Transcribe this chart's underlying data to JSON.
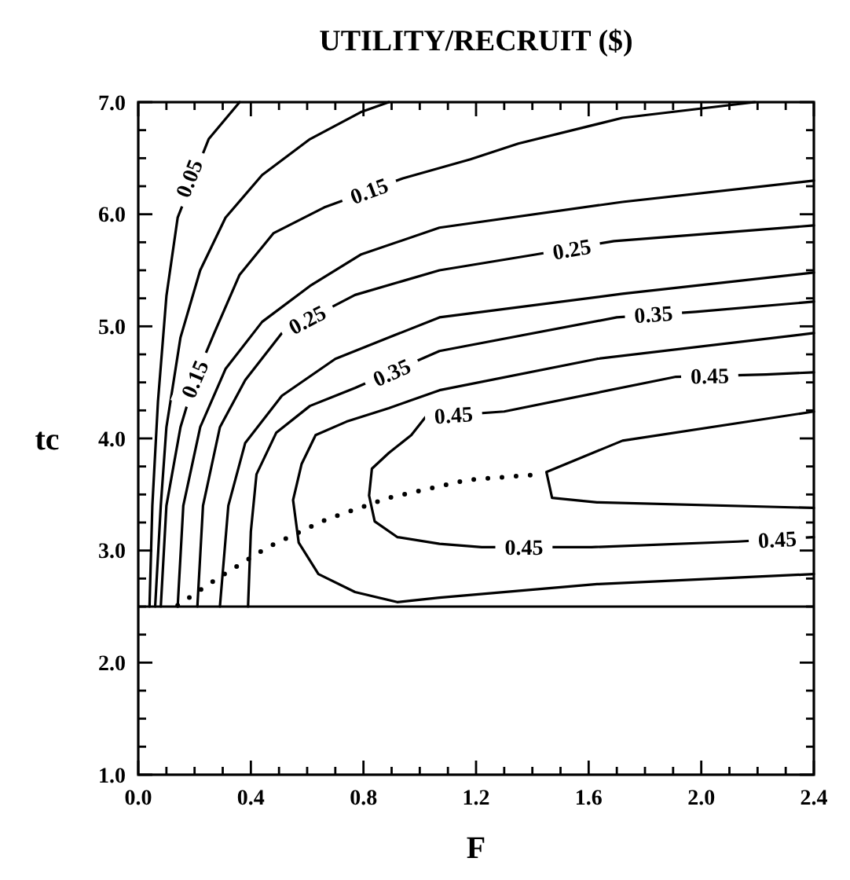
{
  "chart_data": {
    "type": "line",
    "title": "UTILITY/RECRUIT ($)",
    "xlabel": "F",
    "ylabel": "tc",
    "xlim": [
      0,
      2.4
    ],
    "ylim": [
      1,
      7
    ],
    "xticks": [
      {
        "value": 0,
        "label": "0.0"
      },
      {
        "value": 0.1,
        "label": null
      },
      {
        "value": 0.2,
        "label": null
      },
      {
        "value": 0.3,
        "label": null
      },
      {
        "value": 0.4,
        "label": "0.4"
      },
      {
        "value": 0.5,
        "label": null
      },
      {
        "value": 0.6,
        "label": null
      },
      {
        "value": 0.7,
        "label": null
      },
      {
        "value": 0.8,
        "label": "0.8"
      },
      {
        "value": 0.9,
        "label": null
      },
      {
        "value": 1.0,
        "label": null
      },
      {
        "value": 1.1,
        "label": null
      },
      {
        "value": 1.2,
        "label": "1.2"
      },
      {
        "value": 1.3,
        "label": null
      },
      {
        "value": 1.4,
        "label": null
      },
      {
        "value": 1.5,
        "label": null
      },
      {
        "value": 1.6,
        "label": "1.6"
      },
      {
        "value": 1.7,
        "label": null
      },
      {
        "value": 1.8,
        "label": null
      },
      {
        "value": 1.9,
        "label": null
      },
      {
        "value": 2.0,
        "label": "2.0"
      },
      {
        "value": 2.1,
        "label": null
      },
      {
        "value": 2.2,
        "label": null
      },
      {
        "value": 2.3,
        "label": null
      },
      {
        "value": 2.4,
        "label": "2.4"
      }
    ],
    "yticks": [
      {
        "value": 1,
        "label": "1.0"
      },
      {
        "value": 1.25,
        "label": null
      },
      {
        "value": 1.5,
        "label": null
      },
      {
        "value": 1.75,
        "label": null
      },
      {
        "value": 2,
        "label": "2.0"
      },
      {
        "value": 2.25,
        "label": null
      },
      {
        "value": 2.5,
        "label": null
      },
      {
        "value": 2.75,
        "label": null
      },
      {
        "value": 3,
        "label": "3.0"
      },
      {
        "value": 3.25,
        "label": null
      },
      {
        "value": 3.5,
        "label": null
      },
      {
        "value": 3.75,
        "label": null
      },
      {
        "value": 4,
        "label": "4.0"
      },
      {
        "value": 4.25,
        "label": null
      },
      {
        "value": 4.5,
        "label": null
      },
      {
        "value": 4.75,
        "label": null
      },
      {
        "value": 5,
        "label": "5.0"
      },
      {
        "value": 5.25,
        "label": null
      },
      {
        "value": 5.5,
        "label": null
      },
      {
        "value": 5.75,
        "label": null
      },
      {
        "value": 6,
        "label": "6.0"
      },
      {
        "value": 6.25,
        "label": null
      },
      {
        "value": 6.5,
        "label": null
      },
      {
        "value": 6.75,
        "label": null
      },
      {
        "value": 7,
        "label": "7.0"
      }
    ],
    "series": [
      {
        "color": "#000000",
        "x": [
          0.04,
          0.05,
          0.07,
          0.1,
          0.14,
          0.25,
          0.36
        ],
        "values": [
          2.5,
          3.4,
          4.33,
          5.27,
          5.97,
          6.67,
          7.0
        ]
      },
      {
        "color": "#000000",
        "x": [
          0.06,
          0.08,
          0.1,
          0.15,
          0.22,
          0.31,
          0.44,
          0.61,
          0.79,
          0.89
        ],
        "values": [
          2.5,
          3.4,
          4.1,
          4.9,
          5.5,
          5.97,
          6.35,
          6.67,
          6.91,
          7.0
        ]
      },
      {
        "color": "#000000",
        "x": [
          0.08,
          0.1,
          0.15,
          0.2,
          0.27,
          0.36,
          0.48,
          0.66,
          0.94,
          1.18,
          1.35,
          1.72,
          2.19
        ],
        "values": [
          2.5,
          3.4,
          4.1,
          4.52,
          4.94,
          5.46,
          5.83,
          6.06,
          6.32,
          6.49,
          6.63,
          6.86,
          7.0
        ]
      },
      {
        "color": "#000000",
        "x": [
          0.14,
          0.16,
          0.22,
          0.31,
          0.44,
          0.61,
          0.79,
          1.07,
          1.72,
          2.4
        ],
        "values": [
          2.5,
          3.4,
          4.1,
          4.62,
          5.04,
          5.36,
          5.64,
          5.88,
          6.11,
          6.3
        ]
      },
      {
        "color": "#000000",
        "x": [
          0.21,
          0.23,
          0.29,
          0.38,
          0.51,
          0.77,
          1.07,
          1.41,
          1.69,
          2.4
        ],
        "values": [
          2.5,
          3.4,
          4.1,
          4.52,
          4.94,
          5.28,
          5.5,
          5.64,
          5.76,
          5.9
        ]
      },
      {
        "color": "#000000",
        "x": [
          0.29,
          0.32,
          0.38,
          0.51,
          0.7,
          0.89,
          1.07,
          1.72,
          2.4
        ],
        "values": [
          2.5,
          3.4,
          3.96,
          4.38,
          4.71,
          4.9,
          5.08,
          5.29,
          5.48
        ]
      },
      {
        "color": "#000000",
        "x": [
          0.39,
          0.4,
          0.42,
          0.49,
          0.61,
          0.77,
          1.07,
          1.7,
          1.98,
          2.4
        ],
        "values": [
          2.5,
          3.17,
          3.68,
          4.05,
          4.29,
          4.45,
          4.78,
          5.08,
          5.13,
          5.22
        ]
      },
      {
        "color": "#000000",
        "x": [
          2.4,
          1.63,
          1.07,
          0.89,
          0.74,
          0.63,
          0.58,
          0.55,
          0.57,
          0.64,
          0.77,
          0.92,
          1.07,
          1.63,
          2.4
        ],
        "values": [
          4.94,
          4.71,
          4.43,
          4.27,
          4.15,
          4.03,
          3.77,
          3.45,
          3.07,
          2.79,
          2.63,
          2.54,
          2.58,
          2.7,
          2.79
        ]
      },
      {
        "color": "#000000",
        "x": [
          2.4,
          2.23,
          1.91,
          1.3,
          1.02,
          0.97,
          0.89,
          0.83,
          0.82,
          0.84,
          0.92,
          1.07,
          1.22,
          1.61,
          2.13,
          2.4
        ],
        "values": [
          4.59,
          4.57,
          4.55,
          4.24,
          4.19,
          4.03,
          3.87,
          3.73,
          3.49,
          3.26,
          3.12,
          3.06,
          3.03,
          3.03,
          3.08,
          3.12
        ]
      },
      {
        "color": "#000000",
        "x": [
          2.4,
          1.72,
          1.45,
          1.47,
          1.63,
          2.4
        ],
        "values": [
          4.24,
          3.98,
          3.7,
          3.47,
          3.43,
          3.38
        ]
      },
      {
        "color": "#000000",
        "line_style": "dotted",
        "x": [
          0.14,
          0.28,
          0.46,
          0.67,
          0.89,
          1.17,
          1.43
        ],
        "values": [
          2.51,
          2.75,
          3.03,
          3.28,
          3.47,
          3.63,
          3.68
        ]
      }
    ],
    "ref_lines": [
      {
        "axis": "y",
        "value": 2.5,
        "color": "#000000",
        "line_style": "solid"
      }
    ],
    "annotations": [
      {
        "text": "0.05",
        "x": 0.18,
        "y": 6.32
      },
      {
        "text": "0.15",
        "x": 0.82,
        "y": 6.21
      },
      {
        "text": "0.15",
        "x": 0.2,
        "y": 4.53
      },
      {
        "text": "0.25",
        "x": 0.6,
        "y": 5.06
      },
      {
        "text": "0.25",
        "x": 1.54,
        "y": 5.69
      },
      {
        "text": "0.35",
        "x": 0.9,
        "y": 4.59
      },
      {
        "text": "0.35",
        "x": 1.83,
        "y": 5.11
      },
      {
        "text": "0.45",
        "x": 1.12,
        "y": 4.21
      },
      {
        "text": "0.45",
        "x": 2.03,
        "y": 4.56
      },
      {
        "text": "0.45",
        "x": 1.37,
        "y": 3.03
      },
      {
        "text": "0.45",
        "x": 2.27,
        "y": 3.1
      }
    ]
  }
}
